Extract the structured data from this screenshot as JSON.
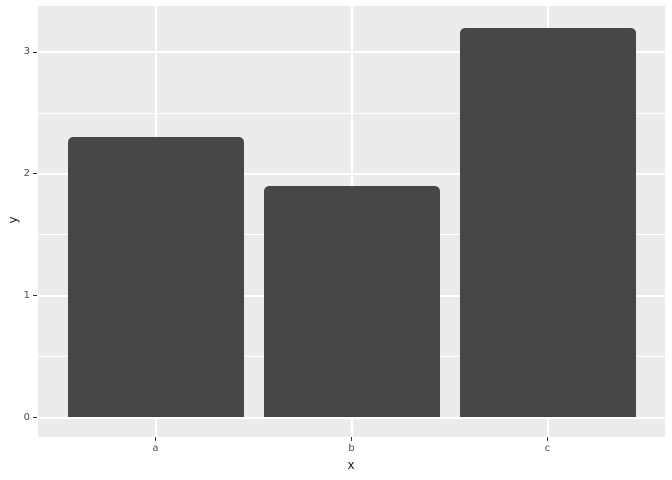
{
  "figure": {
    "background_color": "#FFFFFF",
    "panel_background_color": "#EBEBEB",
    "gridline_color": "#FFFFFF",
    "bar_fill_color": "#474747",
    "tick_label_color": "#4D4D4D",
    "axis_title_color": "#1A1A1A",
    "tick_mark_color": "#333333"
  },
  "chart_data": {
    "type": "bar",
    "title": "",
    "xlabel": "x",
    "ylabel": "y",
    "categories": [
      "a",
      "b",
      "c"
    ],
    "values": [
      2.3,
      1.9,
      3.2
    ],
    "y_major_ticks": [
      0,
      1,
      2,
      3
    ],
    "y_minor_gridlines": [
      0.5,
      1.5,
      2.5
    ],
    "ylim": [
      -0.17,
      3.37
    ],
    "bar_width_fraction": 0.9,
    "grid": "horizontal major+minor, vertical major at categories; white lines on gray panel",
    "legend": "none",
    "style": "ggplot-gray-theme"
  }
}
